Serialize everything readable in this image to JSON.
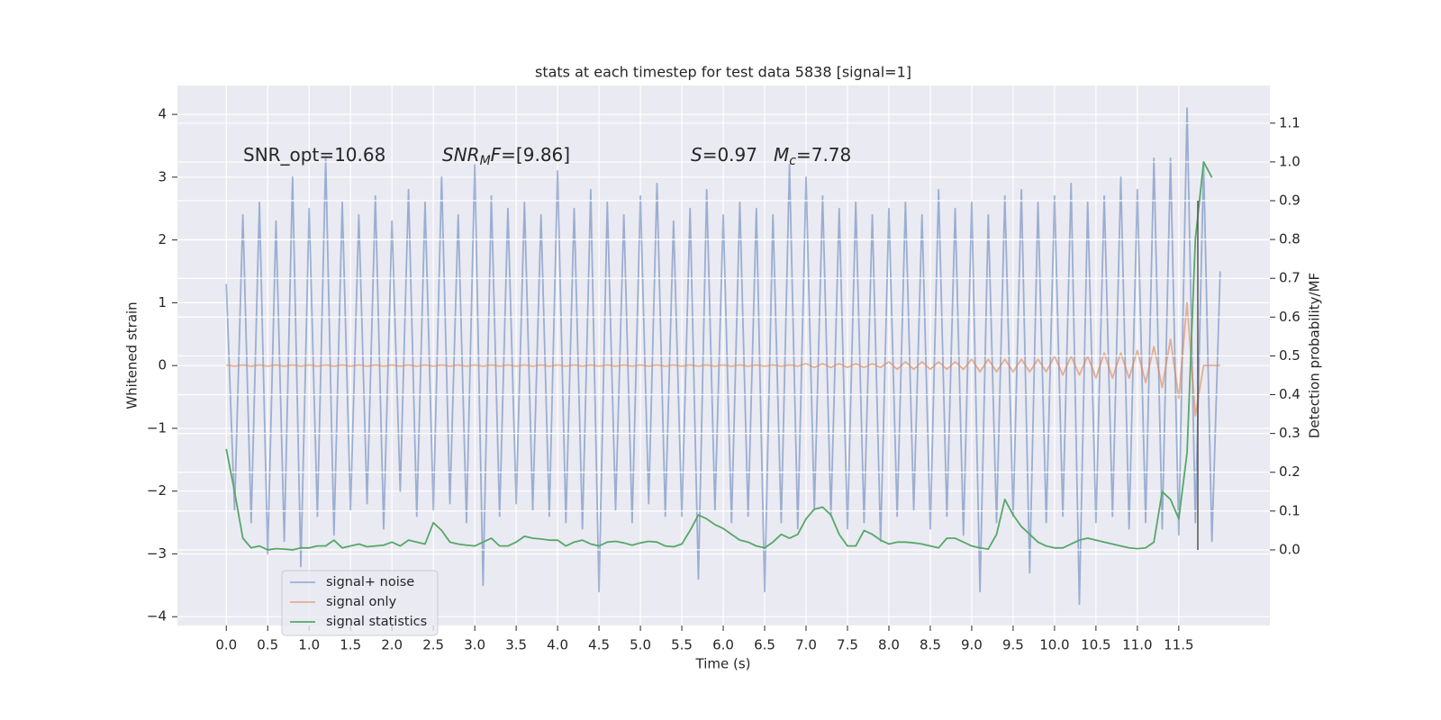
{
  "chart_data": {
    "type": "line",
    "title": "stats at each timestep for test data 5838 [signal=1]",
    "x_label": "Time (s)",
    "y_label": "Whitened strain",
    "y2_label": "Detection probability/MF",
    "xlim": [
      -0.59,
      12.6
    ],
    "ylim": [
      -4.14,
      4.46
    ],
    "y2lim": [
      -0.195,
      1.197
    ],
    "xticks": [
      {
        "value": 0,
        "label": "0.0"
      },
      0.5,
      {
        "value": 1,
        "label": "1.0"
      },
      1.5,
      {
        "value": 2,
        "label": "2.0"
      },
      2.5,
      {
        "value": 3,
        "label": "3.0"
      },
      3.5,
      {
        "value": 4,
        "label": "4.0"
      },
      4.5,
      {
        "value": 5,
        "label": "5.0"
      },
      5.5,
      {
        "value": 6,
        "label": "6.0"
      },
      6.5,
      {
        "value": 7,
        "label": "7.0"
      },
      7.5,
      {
        "value": 8,
        "label": "8.0"
      },
      8.5,
      {
        "value": 9,
        "label": "9.0"
      },
      9.5,
      {
        "value": 10,
        "label": "10.0"
      },
      10.5,
      {
        "value": 11,
        "label": "11.0"
      },
      11.5
    ],
    "yticks": [
      {
        "value": -4,
        "label": "−4"
      },
      {
        "value": -3,
        "label": "−3"
      },
      {
        "value": -2,
        "label": "−2"
      },
      {
        "value": -1,
        "label": "−1"
      },
      0,
      1,
      2,
      3,
      4
    ],
    "y2ticks": [
      {
        "value": 0,
        "label": "0.0"
      },
      0.1,
      0.2,
      0.3,
      0.4,
      0.5,
      0.6,
      0.7,
      0.8,
      0.9,
      {
        "value": 1,
        "label": "1.0"
      },
      1.1
    ],
    "grid": true,
    "legend": "lower left",
    "x": [
      0,
      0.1,
      0.2,
      0.3,
      0.4,
      0.5,
      0.6,
      0.7,
      0.8,
      0.9,
      1,
      1.1,
      1.2,
      1.3,
      1.4,
      1.5,
      1.6,
      1.7,
      1.8,
      1.9,
      2,
      2.1,
      2.2,
      2.3,
      2.4,
      2.5,
      2.6,
      2.7,
      2.8,
      2.9,
      3,
      3.1,
      3.2,
      3.3,
      3.4,
      3.5,
      3.6,
      3.7,
      3.8,
      3.9,
      4,
      4.1,
      4.2,
      4.3,
      4.4,
      4.5,
      4.6,
      4.7,
      4.8,
      4.9,
      5,
      5.1,
      5.2,
      5.3,
      5.4,
      5.5,
      5.6,
      5.7,
      5.8,
      5.9,
      6,
      6.1,
      6.2,
      6.3,
      6.4,
      6.5,
      6.6,
      6.7,
      6.8,
      6.9,
      7,
      7.1,
      7.2,
      7.3,
      7.4,
      7.5,
      7.6,
      7.7,
      7.8,
      7.9,
      8,
      8.1,
      8.2,
      8.3,
      8.4,
      8.5,
      8.6,
      8.7,
      8.8,
      8.9,
      9,
      9.1,
      9.2,
      9.3,
      9.4,
      9.5,
      9.6,
      9.7,
      9.8,
      9.9,
      10,
      10.1,
      10.2,
      10.3,
      10.4,
      10.5,
      10.6,
      10.7,
      10.8,
      10.9,
      11,
      11.1,
      11.2,
      11.3,
      11.4,
      11.5,
      11.6,
      11.7,
      11.8,
      11.9,
      12
    ],
    "series": [
      {
        "name": "signal+ noise",
        "color": "#4c72b0",
        "opacity": 0.5,
        "values": [
          1.3,
          -2.3,
          2.4,
          -2.5,
          2.6,
          -3.0,
          2.3,
          -2.8,
          3.0,
          -3.2,
          2.5,
          -2.4,
          3.3,
          -2.7,
          2.6,
          -2.3,
          2.4,
          -2.2,
          2.7,
          -2.6,
          2.3,
          -2.0,
          2.8,
          -2.4,
          2.6,
          -2.3,
          3.0,
          -2.2,
          2.4,
          -2.5,
          3.2,
          -3.5,
          2.7,
          -2.4,
          2.5,
          -2.2,
          2.6,
          -2.3,
          2.4,
          -2.4,
          3.1,
          -2.5,
          2.5,
          -2.6,
          2.8,
          -3.6,
          2.6,
          -2.3,
          2.4,
          -2.5,
          2.7,
          -2.2,
          2.9,
          -2.4,
          2.3,
          -2.4,
          2.5,
          -3.4,
          2.8,
          -2.3,
          2.4,
          -2.5,
          2.6,
          -2.4,
          2.5,
          -3.6,
          2.4,
          -2.5,
          3.2,
          -2.6,
          3.0,
          -2.3,
          2.7,
          -2.4,
          2.5,
          -2.6,
          2.6,
          -2.5,
          2.4,
          -2.8,
          2.5,
          -2.4,
          2.6,
          -2.3,
          2.4,
          -2.6,
          2.8,
          -2.4,
          2.5,
          -2.7,
          2.6,
          -3.6,
          2.4,
          -2.5,
          2.7,
          -2.4,
          2.8,
          -3.3,
          2.6,
          -2.5,
          2.7,
          -2.4,
          2.9,
          -3.8,
          2.6,
          -2.5,
          2.7,
          -2.4,
          3.0,
          -2.6,
          2.8,
          -2.5,
          3.3,
          -2.6,
          3.3,
          -2.7,
          4.1,
          -2.5,
          3.2,
          -2.8,
          1.5
        ]
      },
      {
        "name": "signal only",
        "color": "#dd8452",
        "opacity": 0.6,
        "values": [
          0.01,
          -0.01,
          0.01,
          -0.01,
          0.01,
          -0.01,
          0.01,
          -0.01,
          0.01,
          -0.01,
          0.01,
          -0.01,
          0.01,
          -0.01,
          0.01,
          -0.01,
          0.01,
          -0.01,
          0.01,
          -0.01,
          0.01,
          -0.01,
          0.01,
          -0.01,
          0.01,
          -0.01,
          0.01,
          -0.01,
          0.01,
          -0.01,
          0.01,
          -0.01,
          0.01,
          -0.01,
          0.01,
          -0.01,
          0.01,
          -0.01,
          0.01,
          -0.01,
          0.01,
          -0.01,
          0.01,
          -0.01,
          0.01,
          -0.01,
          0.01,
          -0.01,
          0.01,
          -0.01,
          0.01,
          -0.01,
          0.01,
          -0.01,
          0.01,
          -0.01,
          0.01,
          -0.01,
          0.01,
          -0.01,
          0.01,
          -0.01,
          0.01,
          -0.01,
          0.01,
          -0.01,
          0.01,
          -0.01,
          0.01,
          -0.01,
          0.03,
          -0.03,
          0.03,
          -0.03,
          0.03,
          -0.03,
          0.03,
          -0.03,
          0.03,
          -0.03,
          0.06,
          -0.06,
          0.06,
          -0.06,
          0.06,
          -0.06,
          0.06,
          -0.06,
          0.06,
          -0.06,
          0.1,
          -0.1,
          0.1,
          -0.1,
          0.1,
          -0.1,
          0.1,
          -0.1,
          0.1,
          -0.1,
          0.15,
          -0.15,
          0.15,
          -0.15,
          0.15,
          -0.2,
          0.2,
          -0.2,
          0.2,
          -0.2,
          0.24,
          -0.27,
          0.3,
          -0.35,
          0.42,
          -0.52,
          1.0,
          -0.8,
          0,
          0,
          0
        ]
      },
      {
        "name": "signal statistics",
        "color": "#55a868",
        "opacity": 1,
        "axis": "y2",
        "values": [
          0.26,
          0.15,
          0.03,
          0.005,
          0.01,
          0.0,
          0.003,
          0.002,
          0.0,
          0.005,
          0.005,
          0.01,
          0.01,
          0.025,
          0.005,
          0.01,
          0.015,
          0.008,
          0.01,
          0.012,
          0.02,
          0.01,
          0.025,
          0.02,
          0.015,
          0.07,
          0.05,
          0.02,
          0.015,
          0.012,
          0.01,
          0.02,
          0.03,
          0.01,
          0.01,
          0.02,
          0.035,
          0.03,
          0.028,
          0.025,
          0.025,
          0.01,
          0.02,
          0.025,
          0.015,
          0.01,
          0.02,
          0.022,
          0.018,
          0.012,
          0.018,
          0.022,
          0.02,
          0.01,
          0.008,
          0.015,
          0.05,
          0.09,
          0.08,
          0.065,
          0.055,
          0.04,
          0.025,
          0.02,
          0.01,
          0.005,
          0.02,
          0.04,
          0.03,
          0.04,
          0.08,
          0.105,
          0.11,
          0.09,
          0.04,
          0.01,
          0.01,
          0.05,
          0.04,
          0.025,
          0.015,
          0.02,
          0.02,
          0.018,
          0.015,
          0.01,
          0.005,
          0.03,
          0.03,
          0.02,
          0.01,
          0.005,
          0.002,
          0.04,
          0.13,
          0.09,
          0.06,
          0.04,
          0.02,
          0.01,
          0.005,
          0.005,
          0.015,
          0.025,
          0.03,
          0.025,
          0.02,
          0.015,
          0.01,
          0.005,
          0.003,
          0.005,
          0.02,
          0.15,
          0.13,
          0.08,
          0.25,
          0.8,
          1.0,
          0.96,
          null
        ]
      }
    ],
    "threshold_line": {
      "x": 11.73,
      "ymin": 0,
      "ymax": 0.9,
      "color": "#555555"
    },
    "annotations": [
      [
        {
          "text": "SNR_opt=10.68"
        }
      ],
      [
        {
          "text": "SNR",
          "italic": true
        },
        {
          "text": "M",
          "italic": true,
          "sub": true
        },
        {
          "text": "F",
          "italic": true
        },
        {
          "text": "=[9.86]"
        }
      ],
      [
        {
          "text": "S",
          "italic": true
        },
        {
          "text": "=0.97"
        }
      ],
      [
        {
          "text": "M",
          "italic": true
        },
        {
          "text": "c",
          "italic": true,
          "sub": true
        },
        {
          "text": "=7.78"
        }
      ]
    ]
  }
}
